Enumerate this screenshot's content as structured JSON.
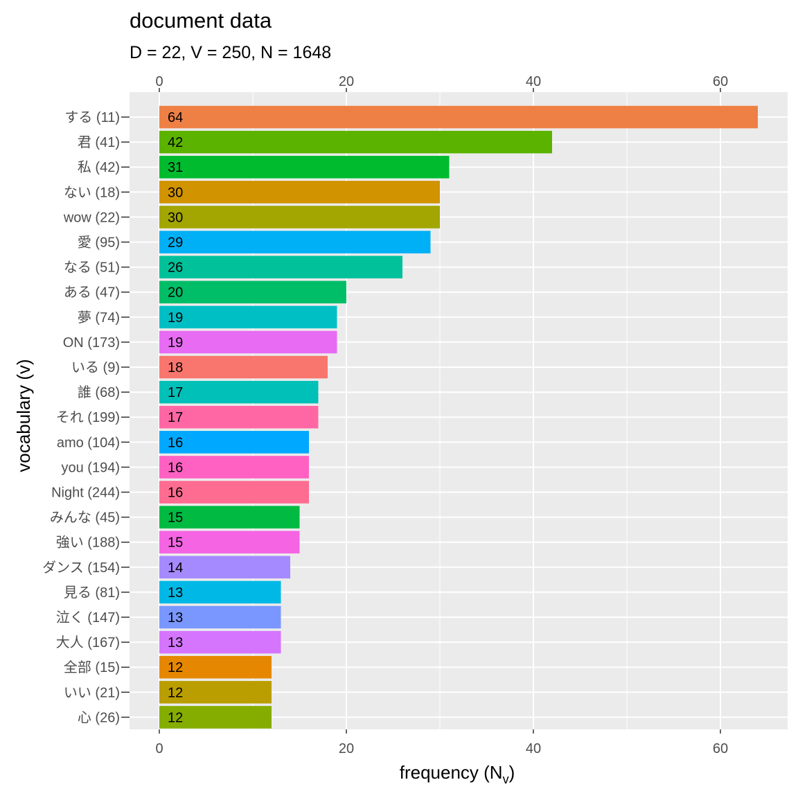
{
  "chart_data": {
    "type": "bar",
    "orientation": "horizontal",
    "title": "document data",
    "subtitle": "D = 22, V = 250, N = 1648",
    "xlabel": "frequency (N",
    "xlabel_sub": "v",
    "xlabel_end": ")",
    "ylabel": "vocabulary (v)",
    "xlim": [
      0,
      67
    ],
    "xticks": [
      0,
      20,
      40,
      60
    ],
    "grid": true,
    "legend": "none",
    "categories": [
      "する (11)",
      "君 (41)",
      "私 (42)",
      "ない (18)",
      "wow (22)",
      "愛 (95)",
      "なる (51)",
      "ある (47)",
      "夢 (74)",
      "ON (173)",
      "いる (9)",
      "誰 (68)",
      "それ (199)",
      "amo (104)",
      "you (194)",
      "Night (244)",
      "みんな (45)",
      "強い (188)",
      "ダンス (154)",
      "見る (81)",
      "泣く (147)",
      "大人 (167)",
      "全部 (15)",
      "いい (21)",
      "心 (26)"
    ],
    "values": [
      64,
      42,
      31,
      30,
      30,
      29,
      26,
      20,
      19,
      19,
      18,
      17,
      17,
      16,
      16,
      16,
      15,
      15,
      14,
      13,
      13,
      13,
      12,
      12,
      12
    ],
    "colors": [
      "#EE8045",
      "#5BB300",
      "#00BB2E",
      "#D19300",
      "#A3A500",
      "#00B0F6",
      "#00C19A",
      "#00BE67",
      "#00BFC4",
      "#E76BF3",
      "#F8766D",
      "#00C0B8",
      "#FF67A4",
      "#00A9FF",
      "#FF61C3",
      "#FF6C91",
      "#00BA42",
      "#F564E3",
      "#A58AFF",
      "#00B8E5",
      "#7997FF",
      "#D575FE",
      "#E58700",
      "#BA9E00",
      "#85AD00"
    ]
  }
}
